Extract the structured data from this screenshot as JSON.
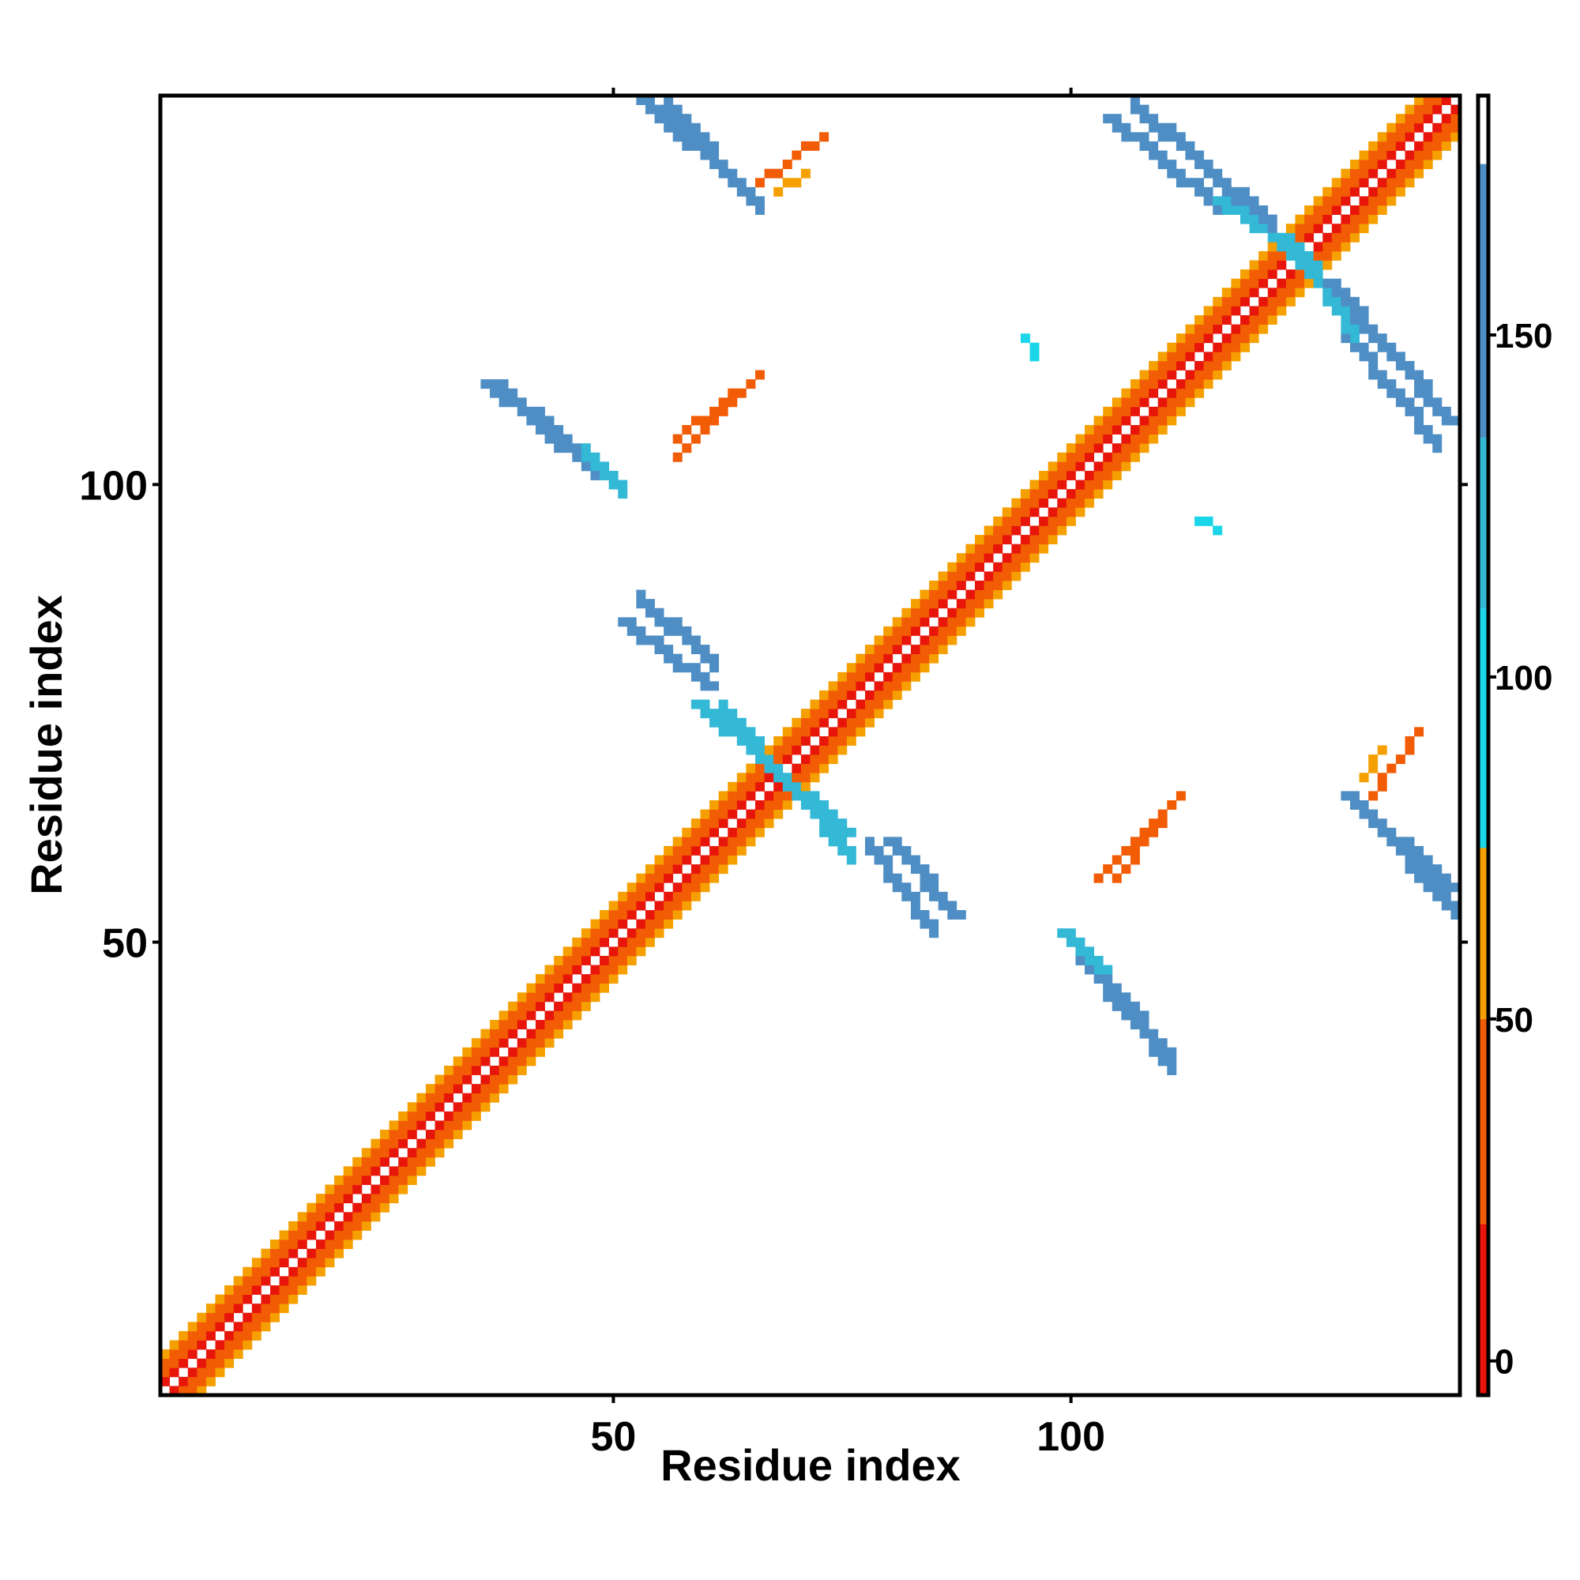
{
  "chart_data": {
    "type": "heatmap",
    "title": "",
    "xlabel": "Residue index",
    "ylabel": "Residue index",
    "xlim": [
      0.5,
      142.5
    ],
    "ylim": [
      0.5,
      142.5
    ],
    "x_ticks": [
      50,
      100
    ],
    "x_tick_labels": [
      "50",
      "100"
    ],
    "y_ticks": [
      50,
      100
    ],
    "y_tick_labels": [
      "50",
      "100"
    ],
    "grid": false,
    "symmetric": true,
    "colorbar": {
      "position": "right",
      "range": [
        -5,
        185
      ],
      "ticks": [
        0,
        50,
        100,
        150
      ],
      "tick_labels": [
        "0",
        "50",
        "100",
        "150"
      ],
      "bands": [
        {
          "from": -5,
          "to": 20,
          "color": "#e8150a"
        },
        {
          "from": 20,
          "to": 50,
          "color": "#f25c05"
        },
        {
          "from": 50,
          "to": 75,
          "color": "#f5a000"
        },
        {
          "from": 75,
          "to": 110,
          "color": "#1ad6e8"
        },
        {
          "from": 110,
          "to": 135,
          "color": "#33b8d6"
        },
        {
          "from": 135,
          "to": 175,
          "color": "#4f8ec4"
        },
        {
          "from": 175,
          "to": 185,
          "color": "#ffffff"
        }
      ]
    },
    "colors": {
      "red": "#e8150a",
      "orange_red": "#f25c05",
      "orange": "#f5a000",
      "cyan": "#1ad6e8",
      "light_blue": "#33b8d6",
      "steel_blue": "#4f8ec4"
    },
    "diagonal_band": {
      "from": 1,
      "to": 142,
      "offsets": [
        {
          "offset": 1,
          "value": 15
        },
        {
          "offset": 2,
          "value": 40
        },
        {
          "offset": 3,
          "value": 30
        },
        {
          "offset": 4,
          "value": 55
        }
      ]
    },
    "segments": [
      {
        "x1": 53,
        "y1": 142,
        "x2": 65,
        "y2": 131,
        "value": 145,
        "width": 2
      },
      {
        "x1": 104,
        "y1": 140,
        "x2": 116,
        "y2": 130,
        "value": 145,
        "width": 2
      },
      {
        "x1": 116,
        "y1": 131,
        "x2": 126,
        "y2": 124,
        "value": 120,
        "width": 2
      },
      {
        "x1": 128,
        "y1": 122,
        "x2": 141,
        "y2": 107,
        "value": 145,
        "width": 2
      },
      {
        "x1": 36,
        "y1": 111,
        "x2": 48,
        "y2": 101,
        "value": 145,
        "width": 2
      },
      {
        "x1": 51,
        "y1": 85,
        "x2": 60,
        "y2": 78,
        "value": 145,
        "width": 2
      },
      {
        "x1": 59,
        "y1": 76,
        "x2": 66,
        "y2": 70,
        "value": 130,
        "width": 2
      },
      {
        "x1": 67,
        "y1": 69,
        "x2": 75,
        "y2": 62,
        "value": 130,
        "width": 2
      },
      {
        "x1": 80,
        "y1": 61,
        "x2": 87,
        "y2": 53,
        "value": 145,
        "width": 2
      },
      {
        "x1": 99,
        "y1": 51,
        "x2": 103,
        "y2": 47,
        "value": 120,
        "width": 2
      },
      {
        "x1": 104,
        "y1": 45,
        "x2": 110,
        "y2": 38,
        "value": 145,
        "width": 2
      },
      {
        "x1": 130,
        "y1": 66,
        "x2": 141,
        "y2": 56,
        "value": 145,
        "width": 2
      },
      {
        "x1": 57,
        "y1": 105,
        "x2": 66,
        "y2": 112,
        "value": 40,
        "width": 1
      },
      {
        "x1": 103,
        "y1": 57,
        "x2": 110,
        "y2": 64,
        "value": 40,
        "width": 1
      },
      {
        "x1": 66,
        "y1": 133,
        "x2": 73,
        "y2": 138,
        "value": 45,
        "width": 1
      },
      {
        "x1": 132,
        "y1": 68,
        "x2": 134,
        "y2": 71,
        "value": 55,
        "width": 1
      },
      {
        "x1": 95,
        "y1": 116,
        "x2": 96,
        "y2": 114,
        "value": 100,
        "width": 1
      }
    ]
  }
}
